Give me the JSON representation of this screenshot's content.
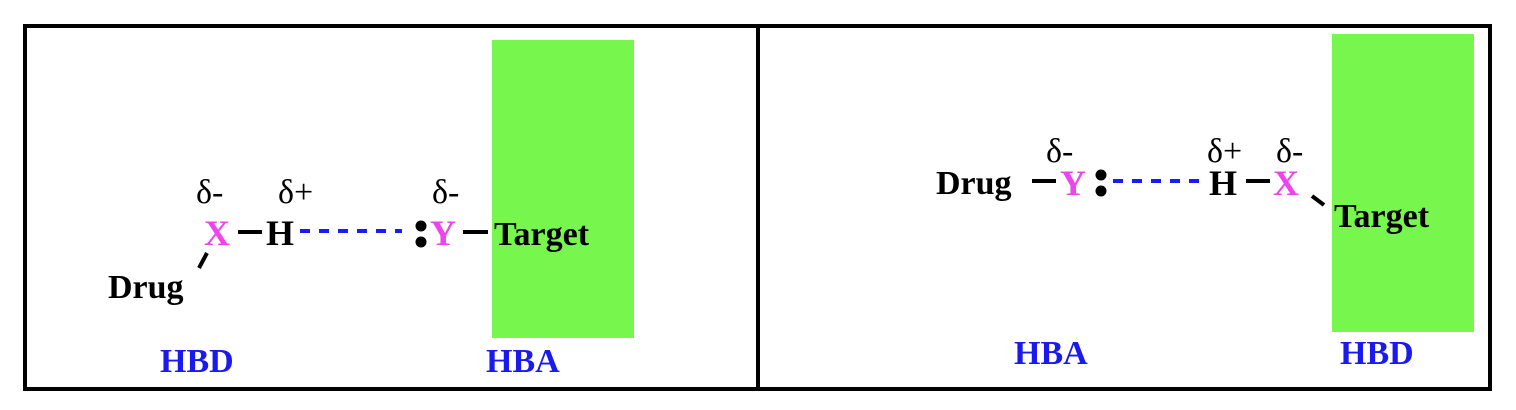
{
  "colors": {
    "atom_accent": "#ee44ee",
    "hbond_line": "#1a1aff",
    "role_label": "#1a1aee",
    "target_block": "#77f74d",
    "text": "#000000",
    "frame": "#000000"
  },
  "left_panel": {
    "donor_atom": "X",
    "donor_charge": "δ-",
    "hydrogen": "H",
    "hydrogen_charge": "δ+",
    "acceptor_atom": "Y",
    "acceptor_charge": "δ-",
    "drug_label": "Drug",
    "target_label": "Target",
    "role_left": "HBD",
    "role_right": "HBA"
  },
  "right_panel": {
    "drug_label": "Drug",
    "acceptor_atom": "Y",
    "acceptor_charge": "δ-",
    "hydrogen": "H",
    "hydrogen_charge": "δ+",
    "donor_atom": "X",
    "donor_charge": "δ-",
    "target_label": "Target",
    "role_left": "HBA",
    "role_right": "HBD"
  }
}
